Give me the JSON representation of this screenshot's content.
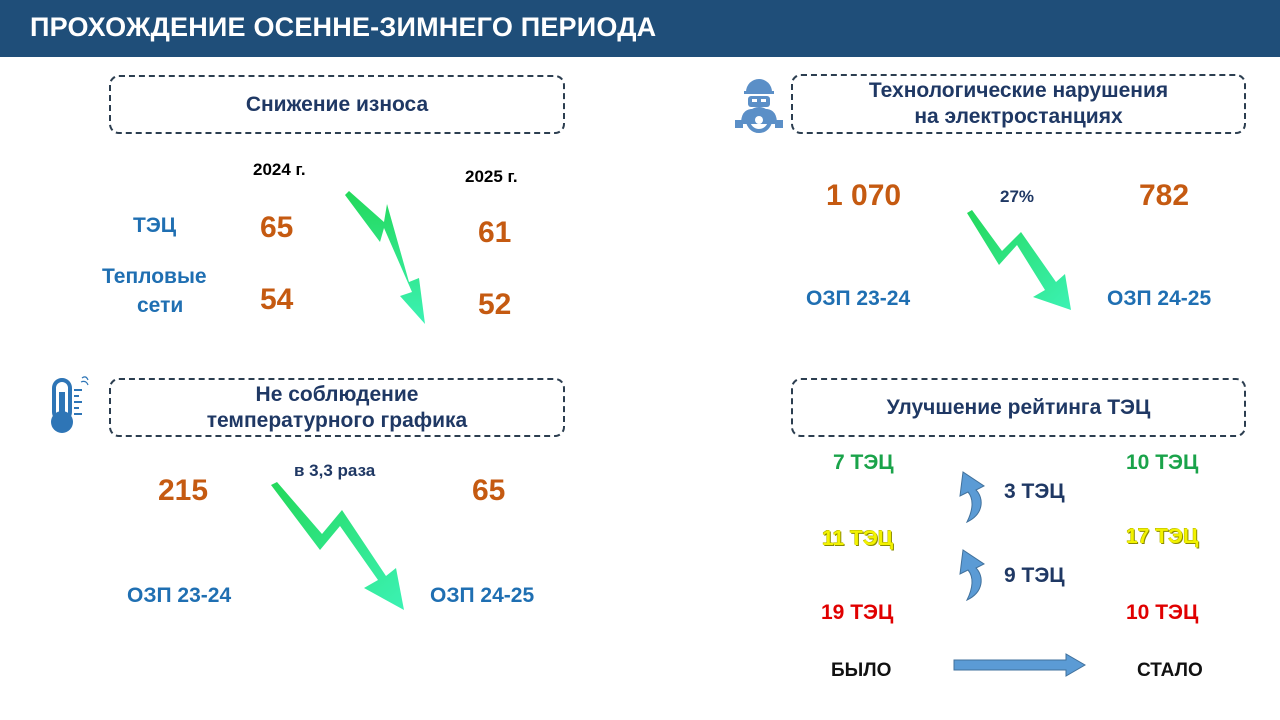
{
  "header": {
    "title": "ПРОХОЖДЕНИЕ ОСЕННЕ-ЗИМНЕГО ПЕРИОДА"
  },
  "colors": {
    "header_bg": "#1f4e79",
    "value_orange": "#c55a11",
    "label_blue": "#1f6fb2",
    "arrow_green": "#2ee59d",
    "rating_arrow_blue": "#5b9bd5"
  },
  "wear": {
    "title": "Снижение износа",
    "year_2024": "2024 г.",
    "year_2025": "2025 г.",
    "rows": [
      {
        "label": "ТЭЦ",
        "v2024": "65",
        "v2025": "61"
      },
      {
        "label_line1": "Тепловые",
        "label_line2": "сети",
        "v2024": "54",
        "v2025": "52"
      }
    ],
    "arrow_icon": "down-trend-arrow-icon"
  },
  "violations": {
    "icon": "worker-gear-icon",
    "title_line1": "Технологические нарушения",
    "title_line2": "на электростанциях",
    "value_before": "1 070",
    "value_after": "782",
    "change": "27%",
    "period_before": "ОЗП 23-24",
    "period_after": "ОЗП 24-25"
  },
  "temperature": {
    "icon": "thermometer-icon",
    "title_line1": "Не соблюдение",
    "title_line2": "температурного графика",
    "value_before": "215",
    "value_after": "65",
    "change": "в 3,3 раза",
    "period_before": "ОЗП 23-24",
    "period_after": "ОЗП 24-25"
  },
  "rating": {
    "title": "Улучшение рейтинга ТЭЦ",
    "before": {
      "green": "7 ТЭЦ",
      "yellow": "11 ТЭЦ",
      "red": "19 ТЭЦ"
    },
    "after": {
      "green": "10 ТЭЦ",
      "yellow": "17 ТЭЦ",
      "red": "10 ТЭЦ"
    },
    "shift_1": "3 ТЭЦ",
    "shift_2": "9 ТЭЦ",
    "label_before": "БЫЛО",
    "label_after": "СТАЛО"
  }
}
